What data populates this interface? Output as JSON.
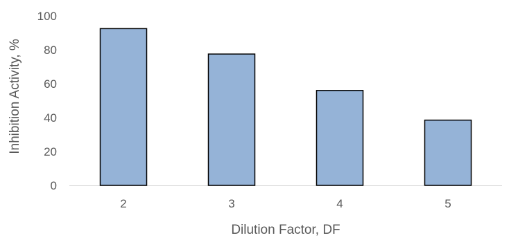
{
  "colors": {
    "bar_fill": "#95b3d7",
    "bar_stroke": "#000000",
    "axis_line": "#d9d9d9",
    "text": "#595959",
    "background": "#ffffff"
  },
  "chart_data": {
    "type": "bar",
    "categories": [
      "2",
      "3",
      "4",
      "5"
    ],
    "values": [
      92.5,
      77.5,
      56,
      38.5
    ],
    "title": "",
    "xlabel": "Dilution Factor, DF",
    "ylabel": "Inhibition Activity, %",
    "ylim": [
      0,
      100
    ],
    "yticks": [
      0,
      20,
      40,
      60,
      80,
      100
    ],
    "ytick_labels": [
      "0",
      "20",
      "40",
      "60",
      "80",
      "100"
    ],
    "grid": false,
    "legend": "none"
  }
}
